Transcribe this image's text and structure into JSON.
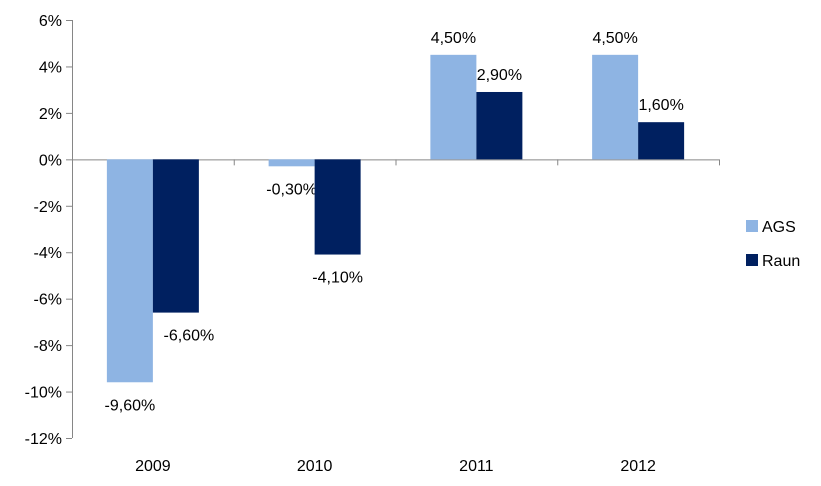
{
  "chart_data": {
    "type": "bar",
    "categories": [
      "2009",
      "2010",
      "2011",
      "2012"
    ],
    "series": [
      {
        "name": "AGS",
        "values": [
          -9.6,
          -0.3,
          4.5,
          4.5
        ],
        "labels": [
          "-9,60%",
          "-0,30%",
          "4,50%",
          "4,50%"
        ],
        "color": "#8EB4E3"
      },
      {
        "name": "Raun",
        "values": [
          -6.6,
          -4.1,
          2.9,
          1.6
        ],
        "labels": [
          "-6,60%",
          "-4,10%",
          "2,90%",
          "1,60%"
        ],
        "color": "#002060"
      }
    ],
    "y_ticks": [
      "6%",
      "4%",
      "2%",
      "0%",
      "-2%",
      "-4%",
      "-6%",
      "-8%",
      "-10%",
      "-12%"
    ],
    "ylim": [
      -12,
      6
    ],
    "grid": false,
    "legend_position": "right"
  }
}
